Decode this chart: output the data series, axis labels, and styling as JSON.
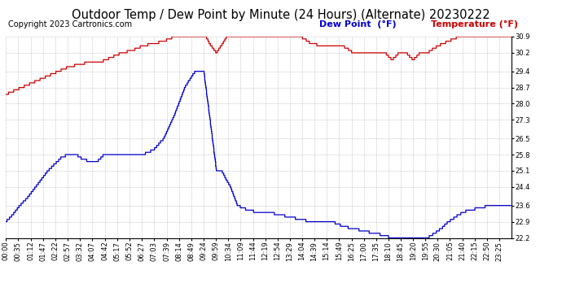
{
  "title": "Outdoor Temp / Dew Point by Minute (24 Hours) (Alternate) 20230222",
  "copyright": "Copyright 2023 Cartronics.com",
  "legend_dew": "Dew Point  (°F)",
  "legend_temp": "Temperature (°F)",
  "temp_color": "#cc0000",
  "dew_color": "#0000cc",
  "background_color": "#ffffff",
  "grid_color": "#999999",
  "ylim_min": 22.2,
  "ylim_max": 30.9,
  "yticks": [
    22.2,
    22.9,
    23.6,
    24.4,
    25.1,
    25.8,
    26.5,
    27.3,
    28.0,
    28.7,
    29.4,
    30.2,
    30.9
  ],
  "title_fontsize": 10.5,
  "copyright_fontsize": 7,
  "legend_fontsize": 8,
  "tick_fontsize": 6,
  "xtick_labels": [
    "00:00",
    "00:35",
    "01:12",
    "01:47",
    "02:22",
    "02:57",
    "03:32",
    "04:07",
    "04:42",
    "05:17",
    "05:52",
    "06:27",
    "07:03",
    "07:39",
    "08:14",
    "08:49",
    "09:24",
    "09:59",
    "10:34",
    "11:09",
    "11:44",
    "12:19",
    "12:54",
    "13:29",
    "14:04",
    "14:39",
    "15:14",
    "15:49",
    "16:25",
    "17:00",
    "17:35",
    "18:10",
    "18:45",
    "19:20",
    "19:55",
    "20:30",
    "21:05",
    "21:40",
    "22:15",
    "22:50",
    "23:25"
  ]
}
